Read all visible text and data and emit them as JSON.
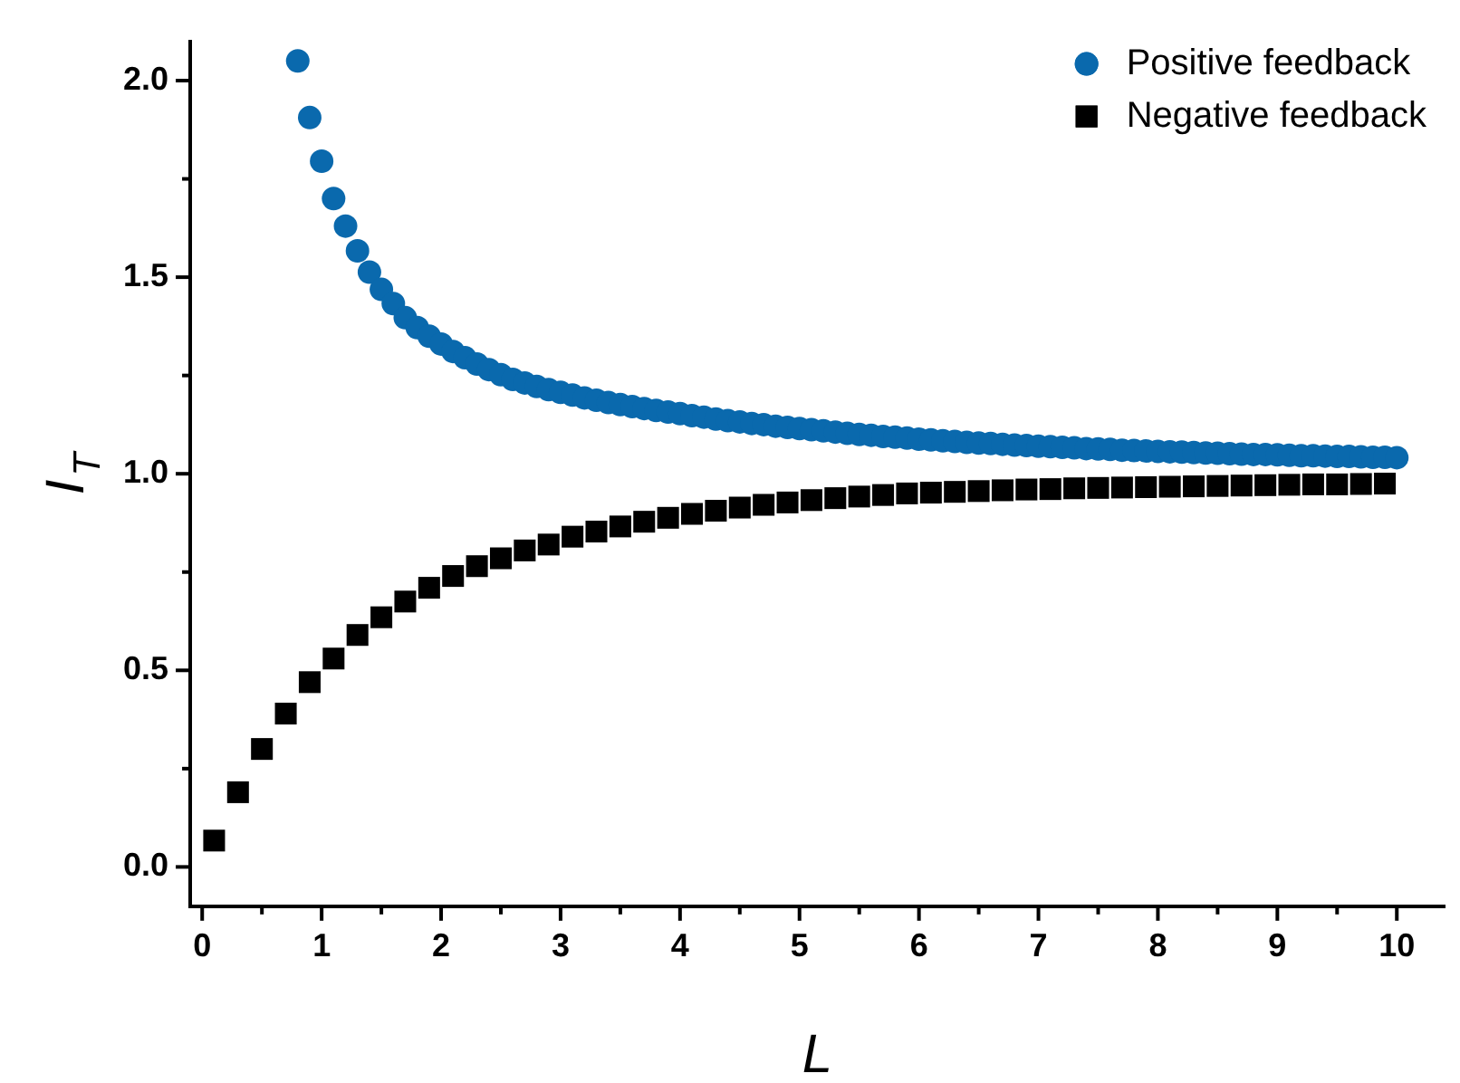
{
  "chart_data": {
    "type": "scatter",
    "xlabel": "L",
    "ylabel": "I$_{T}$",
    "xlim": [
      -0.1,
      10.4
    ],
    "ylim": [
      -0.1,
      2.1
    ],
    "xticks": [
      0,
      {
        "value": 0.5,
        "label": null
      },
      1,
      {
        "value": 1.5,
        "label": null
      },
      2,
      {
        "value": 2.5,
        "label": null
      },
      3,
      {
        "value": 3.5,
        "label": null
      },
      4,
      {
        "value": 4.5,
        "label": null
      },
      5,
      {
        "value": 5.5,
        "label": null
      },
      6,
      {
        "value": 6.5,
        "label": null
      },
      7,
      {
        "value": 7.5,
        "label": null
      },
      8,
      {
        "value": 8.5,
        "label": null
      },
      9,
      {
        "value": 9.5,
        "label": null
      },
      10
    ],
    "yticks": [
      {
        "value": 0,
        "label": "0.0"
      },
      {
        "value": 0.25,
        "label": null
      },
      0.5,
      {
        "value": 0.75,
        "label": null
      },
      {
        "value": 1,
        "label": "1.0"
      },
      {
        "value": 1.25,
        "label": null
      },
      1.5,
      {
        "value": 1.75,
        "label": null
      },
      {
        "value": 2,
        "label": "2.0"
      }
    ],
    "grid": false,
    "legend": "top right",
    "series": [
      {
        "name": "Positive feedback",
        "color": "#0a69ad",
        "marker": "circle",
        "x": [
          0.8,
          0.9,
          1.0,
          1.1,
          1.2,
          1.3,
          1.4,
          1.5,
          1.6,
          1.7,
          1.8,
          1.9,
          2.0,
          2.1,
          2.2,
          2.3,
          2.4,
          2.5,
          2.6,
          2.7,
          2.8,
          2.9,
          3.0,
          3.1,
          3.2,
          3.3,
          3.4,
          3.5,
          3.6,
          3.7,
          3.8,
          3.9,
          4.0,
          4.1,
          4.2,
          4.3,
          4.4,
          4.5,
          4.6,
          4.7,
          4.8,
          4.9,
          5.0,
          5.1,
          5.2,
          5.3,
          5.4,
          5.5,
          5.6,
          5.7,
          5.8,
          5.9,
          6.0,
          6.1,
          6.2,
          6.3,
          6.4,
          6.5,
          6.6,
          6.7,
          6.8,
          6.9,
          7.0,
          7.1,
          7.2,
          7.3,
          7.4,
          7.5,
          7.6,
          7.7,
          7.8,
          7.9,
          8.0,
          8.1,
          8.2,
          8.3,
          8.4,
          8.5,
          8.6,
          8.7,
          8.8,
          8.9,
          9.0,
          9.1,
          9.2,
          9.3,
          9.4,
          9.5,
          9.6,
          9.7,
          9.8,
          9.9,
          10.0
        ],
        "values": [
          2.05,
          1.906,
          1.795,
          1.7,
          1.63,
          1.567,
          1.513,
          1.469,
          1.433,
          1.397,
          1.372,
          1.35,
          1.33,
          1.311,
          1.295,
          1.279,
          1.265,
          1.252,
          1.24,
          1.231,
          1.222,
          1.214,
          1.207,
          1.2,
          1.193,
          1.187,
          1.181,
          1.176,
          1.171,
          1.166,
          1.161,
          1.157,
          1.153,
          1.148,
          1.144,
          1.139,
          1.135,
          1.132,
          1.128,
          1.125,
          1.121,
          1.118,
          1.115,
          1.112,
          1.109,
          1.106,
          1.103,
          1.1,
          1.098,
          1.095,
          1.093,
          1.091,
          1.088,
          1.086,
          1.084,
          1.082,
          1.08,
          1.078,
          1.077,
          1.075,
          1.073,
          1.072,
          1.07,
          1.069,
          1.067,
          1.066,
          1.064,
          1.063,
          1.062,
          1.06,
          1.059,
          1.058,
          1.057,
          1.056,
          1.055,
          1.054,
          1.053,
          1.052,
          1.051,
          1.05,
          1.049,
          1.049,
          1.048,
          1.047,
          1.046,
          1.046,
          1.045,
          1.044,
          1.044,
          1.043,
          1.042,
          1.042,
          1.041
        ]
      },
      {
        "name": "Negative feedback",
        "color": "#000000",
        "marker": "square",
        "x": [
          0.1,
          0.3,
          0.5,
          0.7,
          0.9,
          1.1,
          1.3,
          1.5,
          1.7,
          1.9,
          2.1,
          2.3,
          2.5,
          2.7,
          2.9,
          3.1,
          3.3,
          3.5,
          3.7,
          3.9,
          4.1,
          4.3,
          4.5,
          4.7,
          4.9,
          5.1,
          5.3,
          5.5,
          5.7,
          5.9,
          6.1,
          6.3,
          6.5,
          6.7,
          6.9,
          7.1,
          7.3,
          7.5,
          7.7,
          7.9,
          8.1,
          8.3,
          8.5,
          8.7,
          8.9,
          9.1,
          9.3,
          9.5,
          9.7,
          9.9
        ],
        "values": [
          0.067,
          0.19,
          0.3,
          0.39,
          0.47,
          0.53,
          0.59,
          0.635,
          0.675,
          0.71,
          0.74,
          0.765,
          0.785,
          0.805,
          0.82,
          0.84,
          0.853,
          0.866,
          0.878,
          0.888,
          0.898,
          0.906,
          0.914,
          0.921,
          0.927,
          0.933,
          0.938,
          0.942,
          0.946,
          0.95,
          0.952,
          0.954,
          0.956,
          0.958,
          0.96,
          0.961,
          0.963,
          0.964,
          0.965,
          0.966,
          0.967,
          0.968,
          0.969,
          0.97,
          0.971,
          0.972,
          0.973,
          0.973,
          0.974,
          0.975
        ]
      }
    ]
  }
}
